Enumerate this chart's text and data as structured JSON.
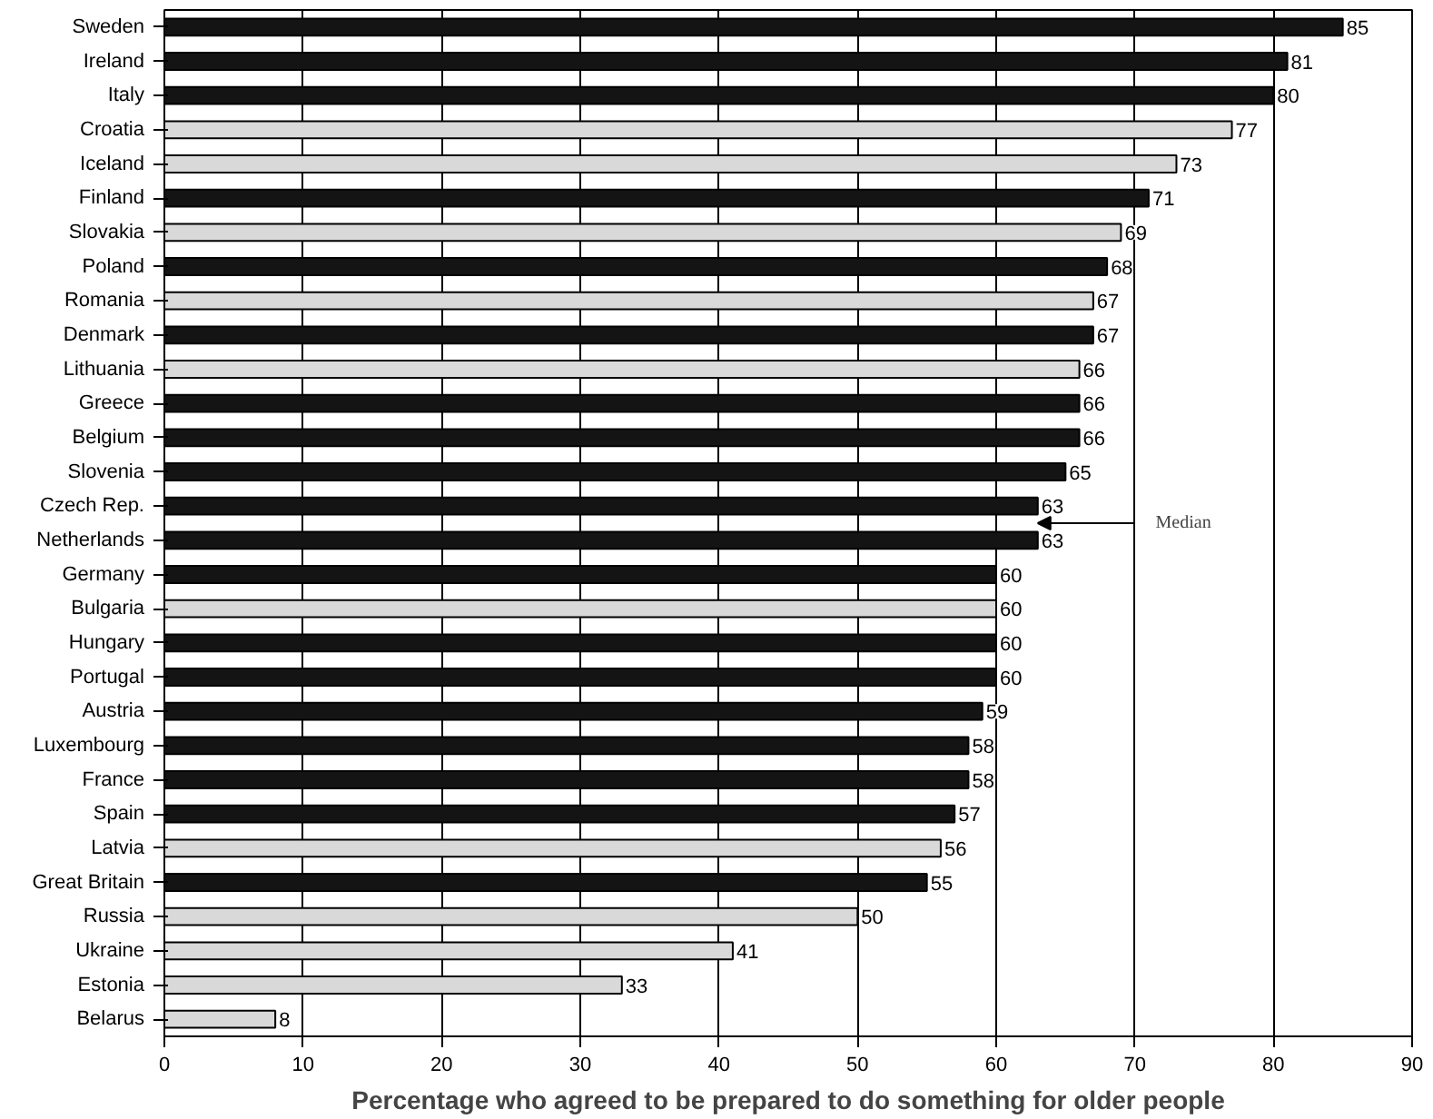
{
  "chart_data": {
    "type": "bar",
    "orientation": "horizontal",
    "xlabel": "Percentage who agreed to be prepared to do something for older people",
    "categories": [
      "Sweden",
      "Ireland",
      "Italy",
      "Croatia",
      "Iceland",
      "Finland",
      "Slovakia",
      "Poland",
      "Romania",
      "Denmark",
      "Lithuania",
      "Greece",
      "Belgium",
      "Slovenia",
      "Czech Rep.",
      "Netherlands",
      "Germany",
      "Bulgaria",
      "Hungary",
      "Portugal",
      "Austria",
      "Luxembourg",
      "France",
      "Spain",
      "Latvia",
      "Great Britain",
      "Russia",
      "Ukraine",
      "Estonia",
      "Belarus"
    ],
    "values": [
      85,
      81,
      80,
      77,
      73,
      71,
      69,
      68,
      67,
      67,
      66,
      66,
      66,
      65,
      63,
      63,
      60,
      60,
      60,
      60,
      59,
      58,
      58,
      57,
      56,
      55,
      50,
      41,
      33,
      8
    ],
    "colors": [
      "#141414",
      "#141414",
      "#141414",
      "#d9d9d9",
      "#d9d9d9",
      "#141414",
      "#d9d9d9",
      "#141414",
      "#d9d9d9",
      "#141414",
      "#d9d9d9",
      "#141414",
      "#141414",
      "#141414",
      "#141414",
      "#141414",
      "#141414",
      "#d9d9d9",
      "#141414",
      "#141414",
      "#141414",
      "#141414",
      "#141414",
      "#141414",
      "#d9d9d9",
      "#141414",
      "#d9d9d9",
      "#d9d9d9",
      "#d9d9d9",
      "#d9d9d9"
    ],
    "xlim": [
      0,
      90
    ],
    "xticks": [
      0,
      10,
      20,
      30,
      40,
      50,
      60,
      70,
      80,
      90
    ],
    "grid": "x",
    "data_labels": true,
    "annotations": [
      "Median"
    ]
  }
}
